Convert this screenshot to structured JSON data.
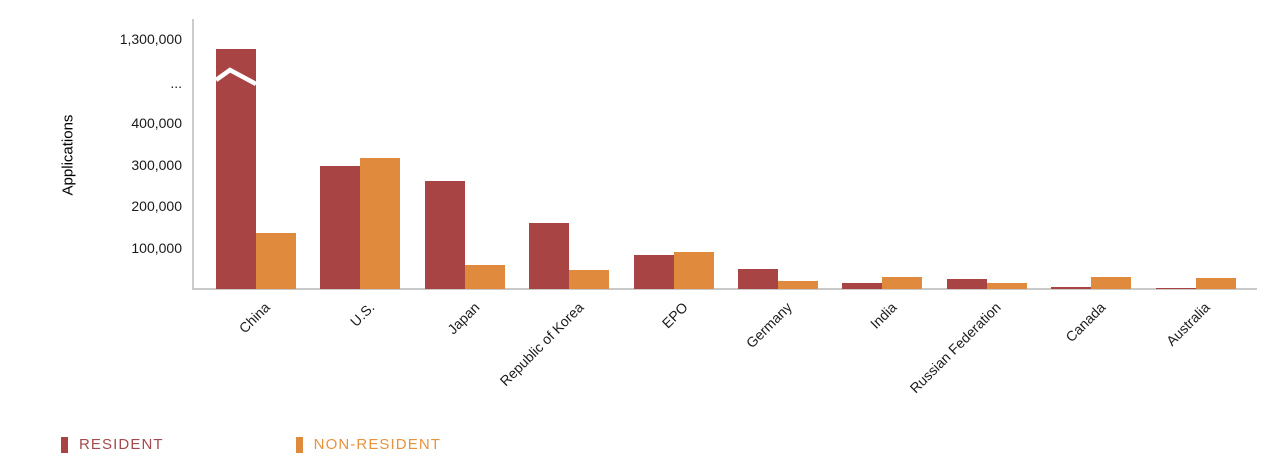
{
  "chart_data": {
    "type": "bar",
    "title": "",
    "xlabel": "",
    "ylabel": "Applications",
    "categories": [
      "China",
      "U.S.",
      "Japan",
      "Republic of Korea",
      "EPO",
      "Germany",
      "India",
      "Russian Federation",
      "Canada",
      "Australia"
    ],
    "series": [
      {
        "name": "RESIDENT",
        "color": "#a84443",
        "label_color": "#a54a4c",
        "values": [
          1250000,
          297000,
          261000,
          160000,
          81000,
          47000,
          14000,
          24000,
          5000,
          3000
        ]
      },
      {
        "name": "NON-RESIDENT",
        "color": "#e08a3d",
        "label_color": "#e8923e",
        "values": [
          135000,
          315000,
          58000,
          46000,
          90000,
          20000,
          30000,
          15000,
          30000,
          26000
        ]
      }
    ],
    "y_ticks": [
      {
        "label": "1,300,000",
        "value": 1300000,
        "in_broken_region": true
      },
      {
        "label": "...",
        "value": null,
        "in_broken_region": true
      },
      {
        "label": "400,000",
        "value": 400000
      },
      {
        "label": "300,000",
        "value": 300000
      },
      {
        "label": "200,000",
        "value": 200000
      },
      {
        "label": "100,000",
        "value": 100000
      }
    ],
    "axis_break": {
      "series": "RESIDENT",
      "category": "China",
      "note": "bar exceeds linear scale; white zigzag break drawn on bar"
    },
    "ylim": [
      0,
      450000
    ],
    "grid": false,
    "legend_position": "bottom-left"
  },
  "legend": {
    "resident_label": "RESIDENT",
    "non_resident_label": "NON-RESIDENT"
  }
}
